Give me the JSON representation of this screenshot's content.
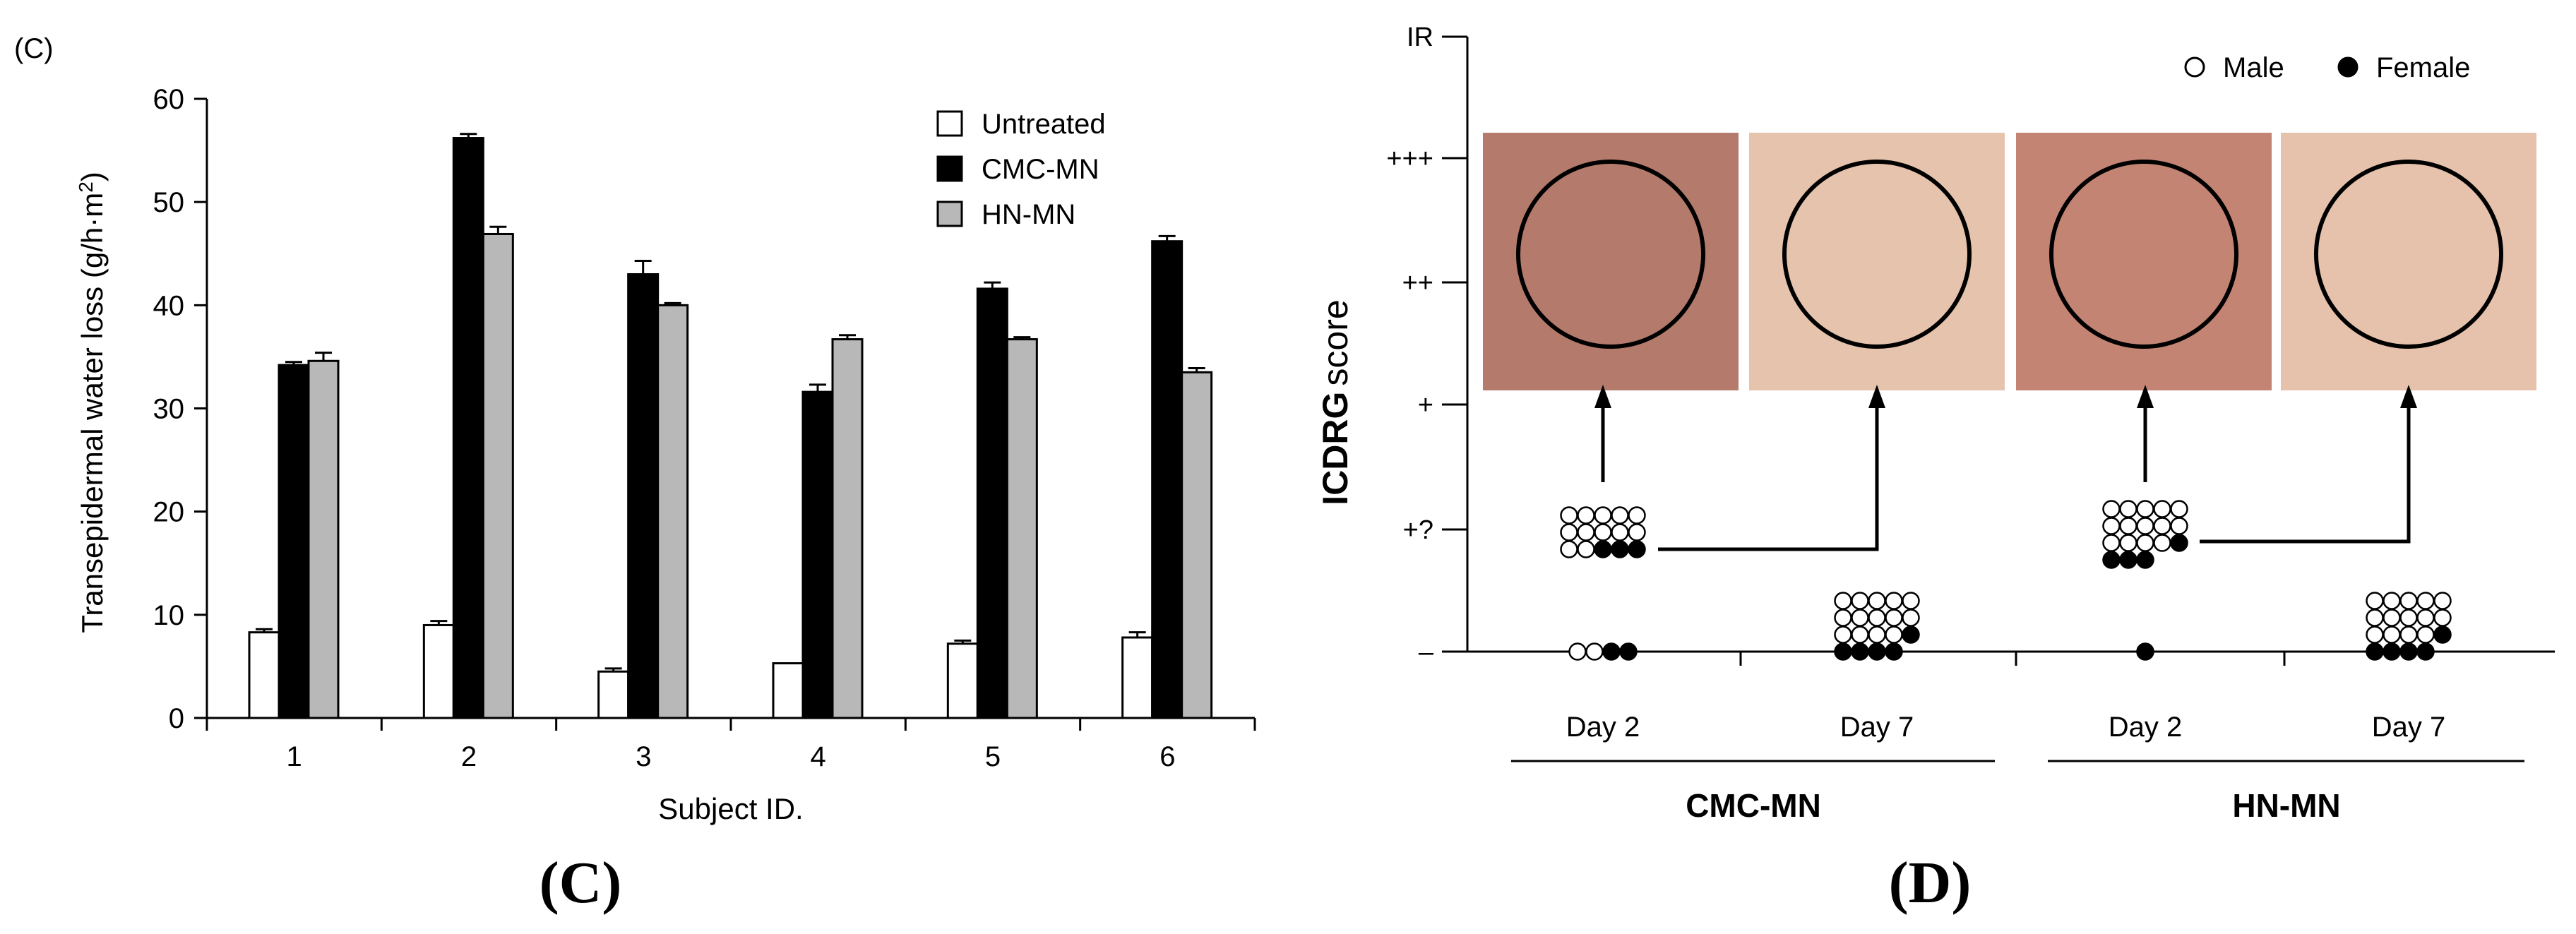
{
  "panel_c": {
    "corner_label": "(C)",
    "caption": "(C)",
    "chart_data": {
      "type": "bar",
      "title": "",
      "xlabel": "Subject ID.",
      "ylabel": "Transepidermal water loss (g/h·m²)",
      "ylabel_main": "Transepidermal water loss (g/h·m",
      "ylabel_sup": "2",
      "ylabel_tail": ")",
      "ylim": [
        0,
        60
      ],
      "yticks": [
        "0",
        "10",
        "20",
        "30",
        "40",
        "50",
        "60"
      ],
      "categories": [
        "1",
        "2",
        "3",
        "4",
        "5",
        "6"
      ],
      "series": [
        {
          "name": "Untreated",
          "color": "#ffffff",
          "values": [
            8.3,
            9.0,
            4.5,
            5.3,
            7.2,
            7.8
          ],
          "errors": [
            0.3,
            0.4,
            0.3,
            0,
            0.3,
            0.5
          ]
        },
        {
          "name": "CMC-MN",
          "color": "#000000",
          "values": [
            34.2,
            56.2,
            43.0,
            31.6,
            41.6,
            46.2
          ],
          "errors": [
            0.3,
            0.4,
            1.3,
            0.7,
            0.6,
            0.5
          ]
        },
        {
          "name": "HN-MN",
          "color": "#b8b8b8",
          "values": [
            34.6,
            46.9,
            40.0,
            36.7,
            36.7,
            33.5
          ],
          "errors": [
            0.8,
            0.7,
            0.2,
            0.4,
            0.2,
            0.4
          ]
        }
      ],
      "legend_position": "top-right"
    }
  },
  "panel_d": {
    "caption": "(D)",
    "chart_data": {
      "type": "scatter",
      "ylabel": "ICDRG score",
      "ylabel_a": "ICDRG",
      "ylabel_b": "score",
      "score_levels": [
        "–",
        "+?",
        "+",
        "++",
        "+++",
        "IR"
      ],
      "groups": [
        {
          "label": "Day 2",
          "treatment": "CMC-MN",
          "scores": [
            {
              "level": "+?",
              "male": 12,
              "female": 3
            },
            {
              "level": "–",
              "male": 2,
              "female": 2
            }
          ]
        },
        {
          "label": "Day 7",
          "treatment": "CMC-MN",
          "scores": [
            {
              "level": "–",
              "male": 14,
              "female": 5
            }
          ]
        },
        {
          "label": "Day 2",
          "treatment": "HN-MN",
          "scores": [
            {
              "level": "+?",
              "male": 14,
              "female": 4
            },
            {
              "level": "–",
              "male": 0,
              "female": 1
            }
          ]
        },
        {
          "label": "Day 7",
          "treatment": "HN-MN",
          "scores": [
            {
              "level": "–",
              "male": 14,
              "female": 5
            }
          ]
        }
      ],
      "treatments": [
        "CMC-MN",
        "HN-MN"
      ],
      "legend": [
        {
          "label": "Male",
          "marker": "open-circle"
        },
        {
          "label": "Female",
          "marker": "filled-circle"
        }
      ]
    },
    "photo_colors": [
      "#b47a6c",
      "#e6c3ad",
      "#c48474",
      "#e6c2ac"
    ]
  }
}
